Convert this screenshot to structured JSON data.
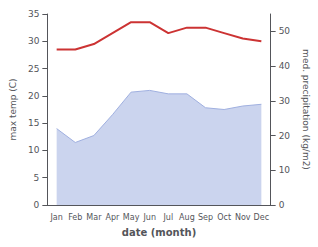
{
  "chart_data": {
    "type": "line",
    "categories": [
      "Jan",
      "Feb",
      "Mar",
      "Apr",
      "May",
      "Jun",
      "Jul",
      "Aug",
      "Sep",
      "Oct",
      "Nov",
      "Dec"
    ],
    "xlabel": "date (month)",
    "ylabel": "max temp (C)",
    "y2label": "med. precipitation (kg/m2)",
    "series": [
      {
        "type": "area",
        "axis": "y2",
        "color": "#a0b0e0",
        "values": [
          22,
          18,
          20,
          26,
          32.5,
          33,
          32,
          32,
          28,
          27.5,
          28.5,
          29
        ]
      },
      {
        "type": "line",
        "color": "#cc3333",
        "values": [
          28.5,
          28.5,
          29.5,
          31.5,
          33.5,
          33.5,
          31.5,
          32.5,
          32.5,
          31.5,
          30.5,
          30.0
        ]
      }
    ],
    "ylim": [
      0,
      35
    ],
    "yticks": [
      0,
      5,
      10,
      15,
      20,
      25,
      30,
      35
    ],
    "y2lim": [
      0,
      55
    ],
    "y2ticks": [
      0,
      10,
      20,
      30,
      40,
      50
    ],
    "grid": false
  }
}
